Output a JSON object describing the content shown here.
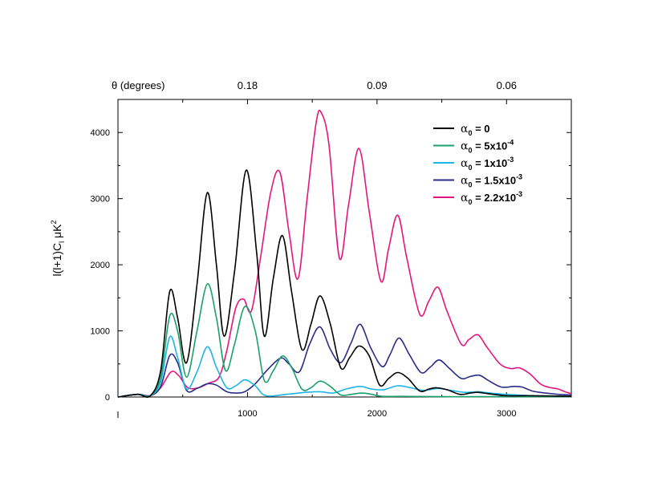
{
  "chart_data": {
    "type": "line",
    "x_axis": {
      "range": [
        0,
        3500
      ],
      "ticks": [
        1000,
        2000,
        3000
      ],
      "tick_labels": [
        "1000",
        "2000",
        "3000"
      ]
    },
    "y_axis": {
      "label": "l(l+1)C",
      "label_sub": "l",
      "label_unit": " μK",
      "label_sup": "2",
      "range": [
        0,
        4500
      ],
      "ticks": [
        0,
        1000,
        2000,
        3000,
        4000
      ],
      "tick_labels": [
        "0",
        "1000",
        "2000",
        "3000",
        "4000"
      ]
    },
    "top_axis": {
      "title": "θ (degrees)",
      "labels": [
        {
          "text": "0.18",
          "l": 1000
        },
        {
          "text": "0.09",
          "l": 2000
        },
        {
          "text": "0.06",
          "l": 3000
        }
      ]
    },
    "legend": {
      "position": "top-right"
    },
    "series": [
      {
        "name": "α0 = 0",
        "symbol": "α",
        "sub": "0",
        "value": " = 0",
        "sup": "",
        "color": "#000000",
        "points": [
          [
            0,
            0
          ],
          [
            150,
            40
          ],
          [
            250,
            20
          ],
          [
            330,
            400
          ],
          [
            400,
            1600
          ],
          [
            460,
            1200
          ],
          [
            530,
            520
          ],
          [
            610,
            1700
          ],
          [
            690,
            3090
          ],
          [
            760,
            2000
          ],
          [
            820,
            920
          ],
          [
            900,
            1900
          ],
          [
            990,
            3430
          ],
          [
            1070,
            2200
          ],
          [
            1130,
            920
          ],
          [
            1200,
            1800
          ],
          [
            1270,
            2440
          ],
          [
            1340,
            1600
          ],
          [
            1420,
            720
          ],
          [
            1490,
            1100
          ],
          [
            1560,
            1530
          ],
          [
            1640,
            1100
          ],
          [
            1720,
            440
          ],
          [
            1790,
            600
          ],
          [
            1860,
            770
          ],
          [
            1940,
            620
          ],
          [
            2020,
            180
          ],
          [
            2090,
            280
          ],
          [
            2160,
            370
          ],
          [
            2240,
            280
          ],
          [
            2330,
            90
          ],
          [
            2400,
            120
          ],
          [
            2460,
            140
          ],
          [
            2540,
            110
          ],
          [
            2640,
            40
          ],
          [
            2720,
            60
          ],
          [
            2780,
            70
          ],
          [
            2860,
            50
          ],
          [
            3000,
            20
          ],
          [
            3200,
            20
          ],
          [
            3500,
            10
          ]
        ]
      },
      {
        "name": "α0 = 5x10-4",
        "symbol": "α",
        "sub": "0",
        "value": " = 5x10",
        "sup": "-4",
        "color": "#1aa16b",
        "points": [
          [
            0,
            0
          ],
          [
            150,
            40
          ],
          [
            250,
            20
          ],
          [
            330,
            300
          ],
          [
            400,
            1230
          ],
          [
            460,
            1000
          ],
          [
            530,
            300
          ],
          [
            610,
            1000
          ],
          [
            690,
            1710
          ],
          [
            760,
            1200
          ],
          [
            830,
            400
          ],
          [
            900,
            800
          ],
          [
            980,
            1370
          ],
          [
            1060,
            1000
          ],
          [
            1130,
            250
          ],
          [
            1200,
            400
          ],
          [
            1270,
            620
          ],
          [
            1340,
            450
          ],
          [
            1420,
            120
          ],
          [
            1490,
            140
          ],
          [
            1560,
            240
          ],
          [
            1640,
            160
          ],
          [
            1720,
            30
          ],
          [
            1800,
            40
          ],
          [
            1880,
            60
          ],
          [
            1960,
            40
          ],
          [
            2040,
            10
          ],
          [
            2200,
            10
          ],
          [
            2500,
            5
          ],
          [
            2800,
            5
          ],
          [
            3200,
            5
          ],
          [
            3500,
            5
          ]
        ]
      },
      {
        "name": "α0 = 1x10-3",
        "symbol": "α",
        "sub": "0",
        "value": " = 1x10",
        "sup": "-3",
        "color": "#1eb5e6",
        "points": [
          [
            0,
            0
          ],
          [
            150,
            40
          ],
          [
            250,
            20
          ],
          [
            330,
            230
          ],
          [
            400,
            910
          ],
          [
            460,
            600
          ],
          [
            530,
            120
          ],
          [
            610,
            380
          ],
          [
            690,
            760
          ],
          [
            760,
            450
          ],
          [
            840,
            140
          ],
          [
            910,
            170
          ],
          [
            980,
            260
          ],
          [
            1060,
            170
          ],
          [
            1140,
            20
          ],
          [
            1300,
            40
          ],
          [
            1450,
            70
          ],
          [
            1560,
            80
          ],
          [
            1660,
            60
          ],
          [
            1760,
            120
          ],
          [
            1870,
            160
          ],
          [
            1960,
            120
          ],
          [
            2050,
            110
          ],
          [
            2160,
            170
          ],
          [
            2260,
            140
          ],
          [
            2360,
            100
          ],
          [
            2470,
            130
          ],
          [
            2570,
            100
          ],
          [
            2680,
            70
          ],
          [
            2780,
            80
          ],
          [
            2870,
            60
          ],
          [
            3000,
            40
          ],
          [
            3200,
            20
          ],
          [
            3500,
            10
          ]
        ]
      },
      {
        "name": "α0 = 1.5x10-3",
        "symbol": "α",
        "sub": "0",
        "value": " = 1.5x10",
        "sup": "-3",
        "color": "#2b2d86",
        "points": [
          [
            0,
            0
          ],
          [
            150,
            40
          ],
          [
            250,
            20
          ],
          [
            330,
            160
          ],
          [
            400,
            630
          ],
          [
            460,
            520
          ],
          [
            530,
            100
          ],
          [
            610,
            130
          ],
          [
            690,
            200
          ],
          [
            760,
            180
          ],
          [
            840,
            80
          ],
          [
            910,
            60
          ],
          [
            980,
            80
          ],
          [
            1060,
            200
          ],
          [
            1140,
            380
          ],
          [
            1220,
            540
          ],
          [
            1270,
            590
          ],
          [
            1320,
            500
          ],
          [
            1400,
            380
          ],
          [
            1480,
            800
          ],
          [
            1560,
            1060
          ],
          [
            1640,
            720
          ],
          [
            1720,
            520
          ],
          [
            1800,
            820
          ],
          [
            1870,
            1100
          ],
          [
            1950,
            750
          ],
          [
            2040,
            460
          ],
          [
            2100,
            640
          ],
          [
            2170,
            890
          ],
          [
            2250,
            640
          ],
          [
            2340,
            370
          ],
          [
            2410,
            450
          ],
          [
            2480,
            560
          ],
          [
            2560,
            430
          ],
          [
            2650,
            280
          ],
          [
            2720,
            310
          ],
          [
            2790,
            330
          ],
          [
            2860,
            250
          ],
          [
            2960,
            150
          ],
          [
            3060,
            160
          ],
          [
            3120,
            150
          ],
          [
            3200,
            90
          ],
          [
            3300,
            60
          ],
          [
            3400,
            40
          ],
          [
            3500,
            30
          ]
        ]
      },
      {
        "name": "α0 = 2.2x10-3",
        "symbol": "α",
        "sub": "0",
        "value": " = 2.2x10",
        "sup": "-3",
        "color": "#e5157f",
        "points": [
          [
            0,
            0
          ],
          [
            150,
            40
          ],
          [
            250,
            20
          ],
          [
            330,
            140
          ],
          [
            410,
            380
          ],
          [
            470,
            320
          ],
          [
            540,
            140
          ],
          [
            620,
            140
          ],
          [
            700,
            210
          ],
          [
            780,
            300
          ],
          [
            840,
            700
          ],
          [
            910,
            1350
          ],
          [
            970,
            1480
          ],
          [
            1030,
            1300
          ],
          [
            1100,
            2100
          ],
          [
            1180,
            3100
          ],
          [
            1250,
            3400
          ],
          [
            1320,
            2500
          ],
          [
            1390,
            1790
          ],
          [
            1460,
            3000
          ],
          [
            1530,
            4150
          ],
          [
            1570,
            4300
          ],
          [
            1630,
            3800
          ],
          [
            1710,
            2100
          ],
          [
            1780,
            2900
          ],
          [
            1860,
            3760
          ],
          [
            1940,
            2800
          ],
          [
            2030,
            1750
          ],
          [
            2090,
            2250
          ],
          [
            2160,
            2750
          ],
          [
            2230,
            2100
          ],
          [
            2330,
            1250
          ],
          [
            2400,
            1450
          ],
          [
            2470,
            1660
          ],
          [
            2540,
            1300
          ],
          [
            2650,
            800
          ],
          [
            2710,
            870
          ],
          [
            2780,
            940
          ],
          [
            2850,
            750
          ],
          [
            2950,
            500
          ],
          [
            3030,
            430
          ],
          [
            3100,
            440
          ],
          [
            3180,
            350
          ],
          [
            3260,
            200
          ],
          [
            3320,
            150
          ],
          [
            3400,
            120
          ],
          [
            3450,
            80
          ],
          [
            3500,
            50
          ]
        ]
      }
    ]
  }
}
